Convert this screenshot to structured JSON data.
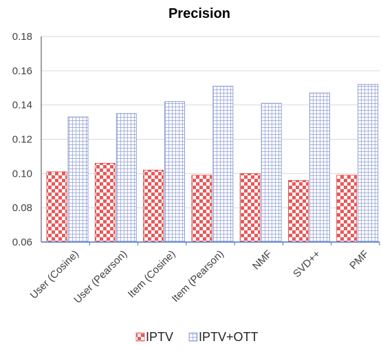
{
  "chart_data": {
    "type": "bar",
    "title": "Precision",
    "xlabel": "",
    "ylabel": "",
    "ylim": [
      0.06,
      0.18
    ],
    "yticks": [
      "0.06",
      "0.08",
      "0.10",
      "0.12",
      "0.14",
      "0.16",
      "0.18"
    ],
    "categories": [
      "User (Cosine)",
      "User (Pearson)",
      "Item (Cosine)",
      "Item (Pearson)",
      "NMF",
      "SVD++",
      "PMF"
    ],
    "series": [
      {
        "name": "IPTV",
        "values": [
          0.101,
          0.106,
          0.102,
          0.099,
          0.1,
          0.096,
          0.099
        ],
        "color": "#e85a5a",
        "pattern": "checkerboard"
      },
      {
        "name": "IPTV+OTT",
        "values": [
          0.133,
          0.135,
          0.142,
          0.151,
          0.141,
          0.147,
          0.152
        ],
        "color": "#8a9ad6",
        "pattern": "grid"
      }
    ],
    "grid": true,
    "legend": "bottom"
  }
}
